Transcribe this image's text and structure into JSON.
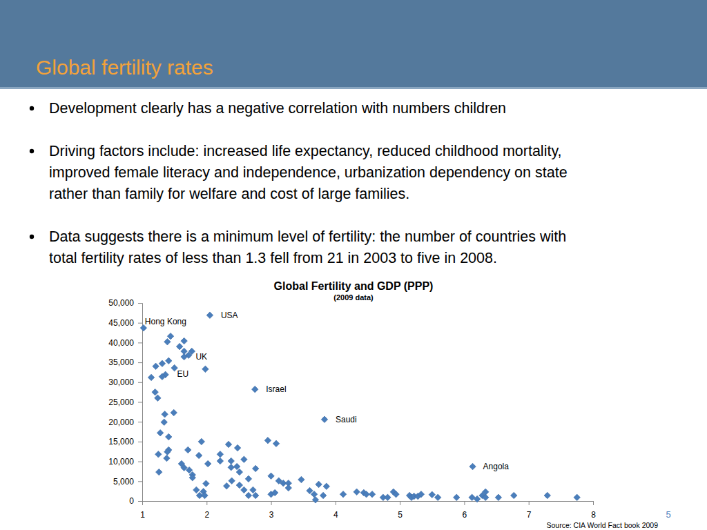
{
  "page": {
    "title": "Global fertility rates",
    "bullets": [
      [
        "Development clearly has a negative correlation with numbers children"
      ],
      [
        "Driving factors include: increased life expectancy, reduced childhood mortality,",
        "improved female literacy and independence, urbanization dependency on state",
        "rather than family for welfare and cost of large families."
      ],
      [
        "Data suggests there is a minimum level of fertility: the number of countries with",
        "total fertility rates of less than 1.3 fell from 21 in 2003 to five in 2008."
      ]
    ],
    "source": "Source: CIA World Fact book 2009",
    "page_number": "5"
  },
  "chart_data": {
    "type": "scatter",
    "title": "Global Fertility and GDP (PPP)",
    "subtitle": "(2009 data)",
    "color": "#4a7ebb",
    "marker": "diamond",
    "grid": false,
    "xlim": [
      1,
      8
    ],
    "xticks": [
      1,
      2,
      3,
      4,
      5,
      6,
      7,
      8
    ],
    "ylim": [
      0,
      50000
    ],
    "yticks": [
      0,
      {
        "value": 5000,
        "label": "5,000"
      },
      {
        "value": 10000,
        "label": "10,000"
      },
      {
        "value": 15000,
        "label": "15,000"
      },
      {
        "value": 20000,
        "label": "20,000"
      },
      {
        "value": 25000,
        "label": "25,000"
      },
      {
        "value": 30000,
        "label": "30,000"
      },
      {
        "value": 35000,
        "label": "35,000"
      },
      {
        "value": 40000,
        "label": "40,000"
      },
      {
        "value": 45000,
        "label": "45,000"
      },
      {
        "value": 50000,
        "label": "50,000"
      }
    ],
    "x": [
      1.02,
      2.05,
      1.98,
      1.36,
      2.75,
      3.83,
      6.13,
      1.44,
      1.39,
      1.65,
      1.58,
      1.77,
      1.65,
      1.72,
      1.65,
      1.41,
      1.21,
      1.31,
      1.5,
      1.14,
      1.31,
      1.2,
      1.24,
      1.35,
      1.49,
      1.34,
      1.28,
      1.41,
      1.41,
      1.39,
      1.25,
      1.38,
      1.26,
      1.71,
      1.92,
      1.61,
      1.65,
      1.73,
      1.78,
      1.78,
      1.88,
      2.02,
      1.84,
      1.89,
      1.95,
      1.99,
      1.97,
      2.21,
      2.21,
      2.34,
      2.48,
      2.38,
      2.58,
      2.38,
      2.47,
      2.76,
      2.39,
      2.31,
      2.51,
      2.51,
      2.65,
      2.58,
      2.65,
      2.72,
      2.76,
      2.95,
      3.08,
      3.0,
      3.0,
      3.06,
      3.12,
      3.19,
      3.27,
      3.27,
      3.47,
      3.6,
      3.67,
      3.69,
      3.74,
      3.81,
      3.86,
      4.12,
      4.33,
      4.44,
      4.48,
      4.57,
      4.74,
      4.81,
      4.9,
      4.94,
      5.15,
      5.18,
      5.22,
      5.28,
      5.33,
      5.5,
      5.59,
      5.88,
      6.12,
      6.2,
      6.28,
      6.33,
      6.33,
      6.53,
      6.77,
      7.29,
      7.75
    ],
    "values": [
      43700,
      46900,
      33300,
      31900,
      28200,
      20600,
      8700,
      41600,
      40200,
      40400,
      39000,
      37800,
      37800,
      36800,
      36400,
      35400,
      34000,
      34700,
      33600,
      31200,
      31400,
      27500,
      26000,
      21900,
      22300,
      19900,
      17200,
      16200,
      12900,
      12400,
      11800,
      10800,
      7300,
      12900,
      15000,
      9400,
      8400,
      7800,
      6600,
      5900,
      11500,
      9400,
      2800,
      1400,
      2400,
      4400,
      1400,
      11800,
      10100,
      14300,
      13400,
      10100,
      10500,
      8500,
      8700,
      8200,
      5100,
      3800,
      7300,
      4000,
      5600,
      2800,
      1400,
      2800,
      1400,
      15300,
      14500,
      6300,
      1700,
      2100,
      5100,
      4500,
      4500,
      3300,
      5400,
      2600,
      1700,
      300,
      4200,
      1400,
      3700,
      1700,
      2300,
      2100,
      1700,
      1700,
      900,
      900,
      2300,
      1700,
      1400,
      900,
      1200,
      1200,
      1700,
      1600,
      900,
      900,
      900,
      500,
      1400,
      2300,
      900,
      900,
      1400,
      1400,
      900
    ],
    "point_labels": [
      "Hong Kong",
      "USA",
      "UK",
      "EU",
      "Israel",
      "Saudi",
      "Angola",
      null,
      null,
      null,
      null,
      null,
      null,
      null,
      null,
      null,
      null,
      null,
      null,
      null,
      null,
      null,
      null,
      null,
      null,
      null,
      null,
      null,
      null,
      null,
      null,
      null,
      null,
      null,
      null,
      null,
      null,
      null,
      null,
      null,
      null,
      null,
      null,
      null,
      null,
      null,
      null,
      null,
      null,
      null,
      null,
      null,
      null,
      null,
      null,
      null,
      null,
      null,
      null,
      null,
      null,
      null,
      null,
      null,
      null,
      null,
      null,
      null,
      null,
      null,
      null,
      null,
      null,
      null,
      null,
      null,
      null,
      null,
      null,
      null,
      null,
      null,
      null,
      null,
      null,
      null,
      null,
      null,
      null,
      null,
      null,
      null,
      null,
      null,
      null,
      null,
      null,
      null,
      null,
      null,
      null,
      null,
      null,
      null,
      null,
      null,
      null
    ]
  }
}
